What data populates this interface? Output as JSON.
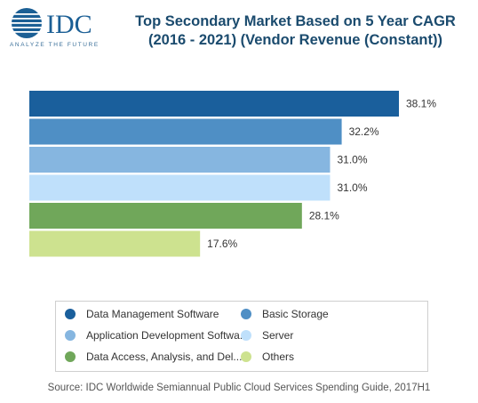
{
  "logo": {
    "text": "IDC",
    "tagline": "ANALYZE THE FUTURE",
    "colors": {
      "globe": "#1b5f95",
      "text": "#1b5f95",
      "tagline": "#3a6f99"
    }
  },
  "title": {
    "line1": "Top Secondary Market Based on 5 Year CAGR",
    "line2": "(2016 - 2021) (Vendor Revenue (Constant))"
  },
  "chart_data": {
    "type": "bar",
    "orientation": "horizontal",
    "categories": [
      "Data Management Software",
      "Basic Storage",
      "Application Development Softwa...",
      "Server",
      "Data Access, Analysis, and Del...",
      "Others"
    ],
    "values": [
      38.1,
      32.2,
      31.0,
      31.0,
      28.1,
      17.6
    ],
    "data_labels": [
      "38.1%",
      "32.2%",
      "31.0%",
      "31.0%",
      "28.1%",
      "17.6%"
    ],
    "colors": [
      "#1a5f9c",
      "#4f8fc5",
      "#86b6e0",
      "#bfe0fb",
      "#70a75a",
      "#cde28f"
    ],
    "xlim": [
      0,
      38.1
    ],
    "grid": false,
    "legend_position": "bottom"
  },
  "source": "Source: IDC Worldwide Semiannual Public Cloud Services Spending Guide, 2017H1"
}
